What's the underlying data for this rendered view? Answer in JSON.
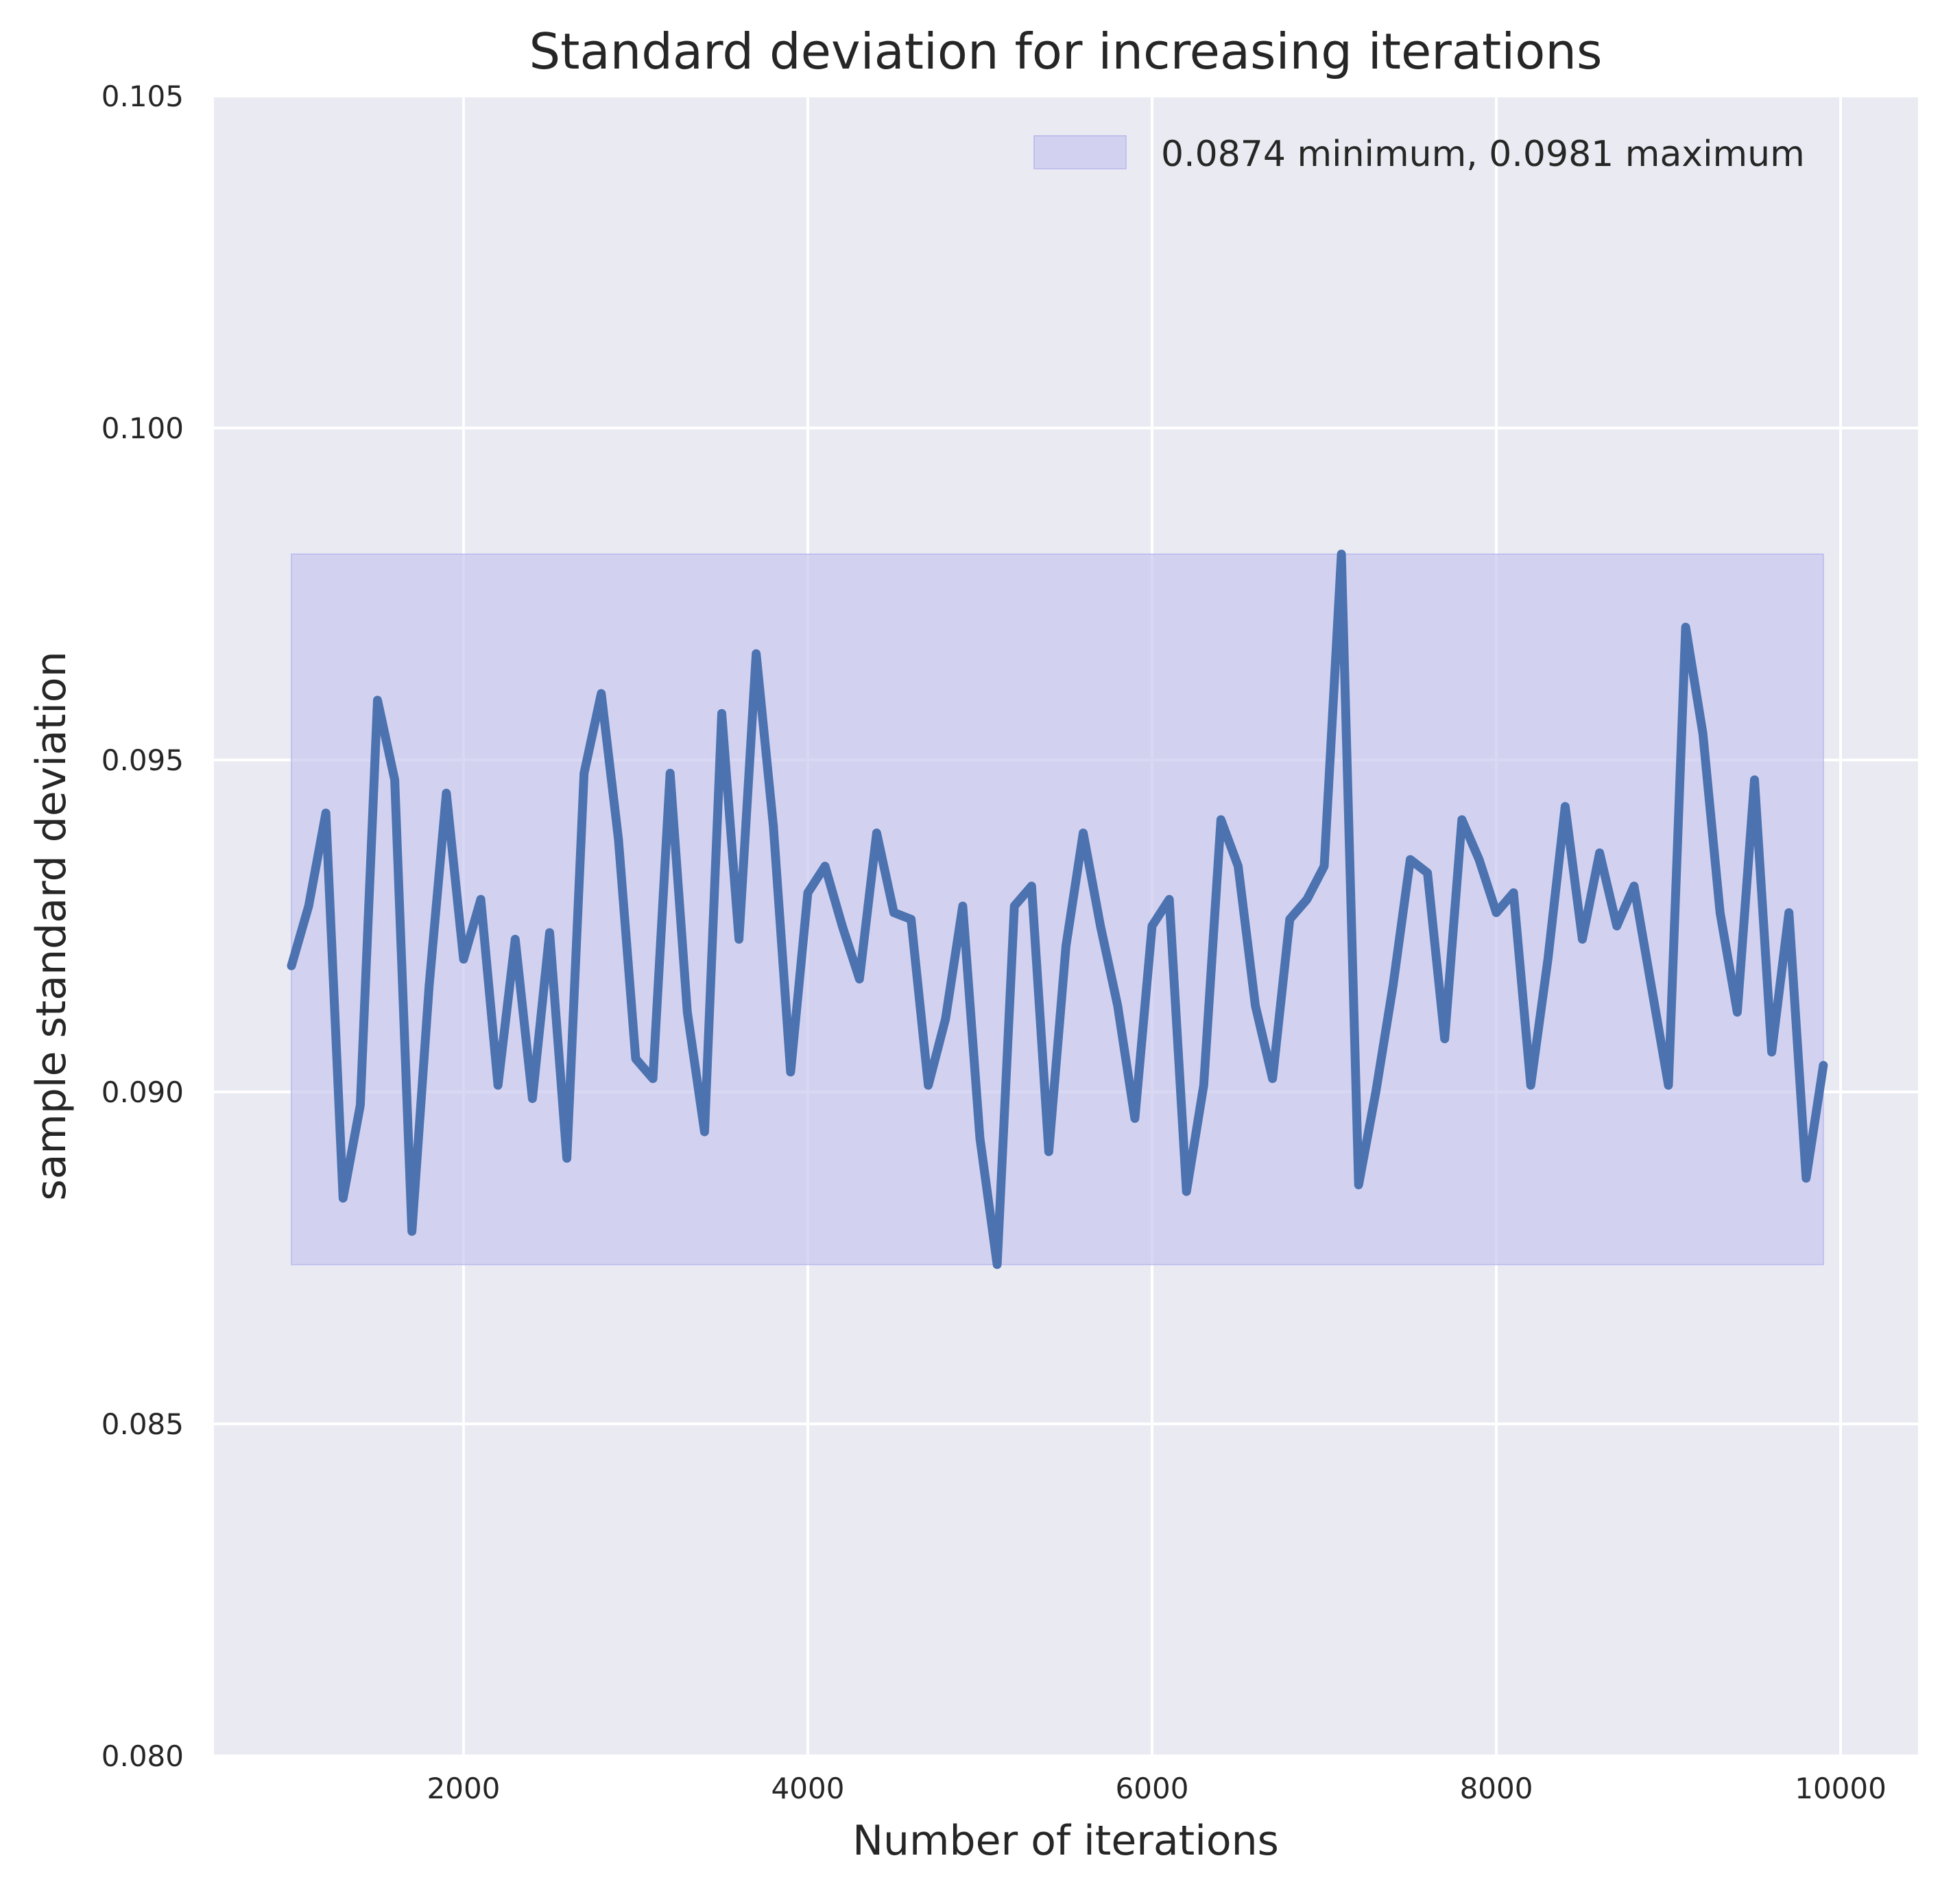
{
  "chart_data": {
    "type": "line",
    "title": "Standard deviation for increasing iterations",
    "xlabel": "Number of iterations",
    "ylabel": "sample standard deviation",
    "xlim": [
      550,
      10450
    ],
    "ylim": [
      0.08,
      0.105
    ],
    "x_ticks": [
      2000,
      4000,
      6000,
      8000,
      10000
    ],
    "x_tick_labels": [
      "2000",
      "4000",
      "6000",
      "8000",
      "10000"
    ],
    "y_ticks": [
      0.08,
      0.085,
      0.09,
      0.095,
      0.1,
      0.105
    ],
    "y_tick_labels": [
      "0.080",
      "0.085",
      "0.090",
      "0.095",
      "0.100",
      "0.105"
    ],
    "grid": true,
    "legend_position": "top-right",
    "band": {
      "label": "0.0874 minimum, 0.0981 maximum",
      "x_range": [
        1000,
        9900
      ],
      "y_min": 0.0874,
      "y_max": 0.0981,
      "color": "#c8c8f0"
    },
    "series": [
      {
        "color": "#4c72b0",
        "x": [
          1000,
          1100,
          1200,
          1300,
          1400,
          1500,
          1600,
          1700,
          1800,
          1900,
          2000,
          2100,
          2200,
          2300,
          2400,
          2500,
          2600,
          2700,
          2800,
          2900,
          3000,
          3100,
          3200,
          3300,
          3400,
          3500,
          3600,
          3700,
          3800,
          3900,
          4000,
          4100,
          4200,
          4300,
          4400,
          4500,
          4600,
          4700,
          4800,
          4900,
          5000,
          5100,
          5200,
          5300,
          5400,
          5500,
          5600,
          5700,
          5800,
          5900,
          6000,
          6100,
          6200,
          6300,
          6400,
          6500,
          6600,
          6700,
          6800,
          6900,
          7000,
          7100,
          7200,
          7300,
          7400,
          7500,
          7600,
          7700,
          7800,
          7900,
          8000,
          8100,
          8200,
          8300,
          8400,
          8500,
          8600,
          8700,
          8800,
          8900,
          9000,
          9100,
          9200,
          9300,
          9400,
          9500,
          9600,
          9700,
          9800,
          9900
        ],
        "values": [
          0.0919,
          0.0928,
          0.0942,
          0.0884,
          0.0898,
          0.0959,
          0.0947,
          0.0879,
          0.0916,
          0.0945,
          0.092,
          0.0929,
          0.0901,
          0.0923,
          0.0899,
          0.0924,
          0.089,
          0.0948,
          0.096,
          0.0938,
          0.0905,
          0.0902,
          0.0948,
          0.0912,
          0.0894,
          0.0957,
          0.0923,
          0.0966,
          0.094,
          0.0903,
          0.093,
          0.0934,
          0.0925,
          0.0917,
          0.0939,
          0.0927,
          0.0926,
          0.0901,
          0.0911,
          0.0928,
          0.0893,
          0.0874,
          0.0928,
          0.0931,
          0.0891,
          0.0922,
          0.0939,
          0.0925,
          0.0913,
          0.0896,
          0.0925,
          0.0929,
          0.0885,
          0.0901,
          0.0941,
          0.0934,
          0.0913,
          0.0902,
          0.0926,
          0.0929,
          0.0934,
          0.0981,
          0.0886,
          0.09,
          0.0916,
          0.0935,
          0.0933,
          0.0908,
          0.0941,
          0.0935,
          0.0927,
          0.093,
          0.0901,
          0.092,
          0.0943,
          0.0923,
          0.0936,
          0.0925,
          0.0931,
          0.0916,
          0.0901,
          0.097,
          0.0954,
          0.0927,
          0.0912,
          0.0947,
          0.0906,
          0.0927,
          0.0887,
          0.0904
        ]
      }
    ]
  }
}
